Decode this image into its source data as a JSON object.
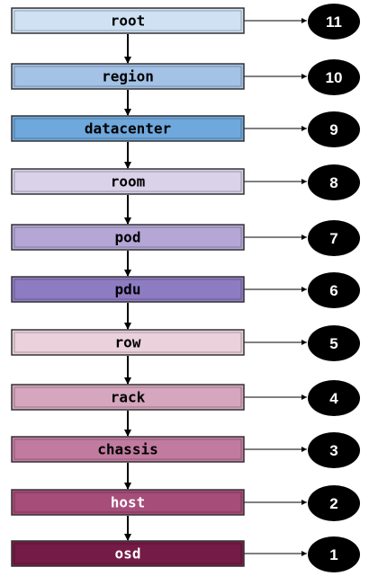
{
  "levels": [
    {
      "label": "root",
      "number": "11",
      "fill": "#cfe2f3"
    },
    {
      "label": "region",
      "number": "10",
      "fill": "#a4c2e6"
    },
    {
      "label": "datacenter",
      "number": "9",
      "fill": "#6fa8dc"
    },
    {
      "label": "room",
      "number": "8",
      "fill": "#d9d2e9"
    },
    {
      "label": "pod",
      "number": "7",
      "fill": "#b4a7d6"
    },
    {
      "label": "pdu",
      "number": "6",
      "fill": "#8e7cc3"
    },
    {
      "label": "row",
      "number": "5",
      "fill": "#ead1dc"
    },
    {
      "label": "rack",
      "number": "4",
      "fill": "#d5a6bd"
    },
    {
      "label": "chassis",
      "number": "3",
      "fill": "#c27ba0"
    },
    {
      "label": "host",
      "number": "2",
      "fill": "#a64d79"
    },
    {
      "label": "osd",
      "number": "1",
      "fill": "#741b47"
    }
  ],
  "colors": {
    "border": "#333333",
    "arrow": "#000000",
    "badge": "#000000",
    "light_text": "#000000",
    "dark_text": "#ffffff"
  }
}
